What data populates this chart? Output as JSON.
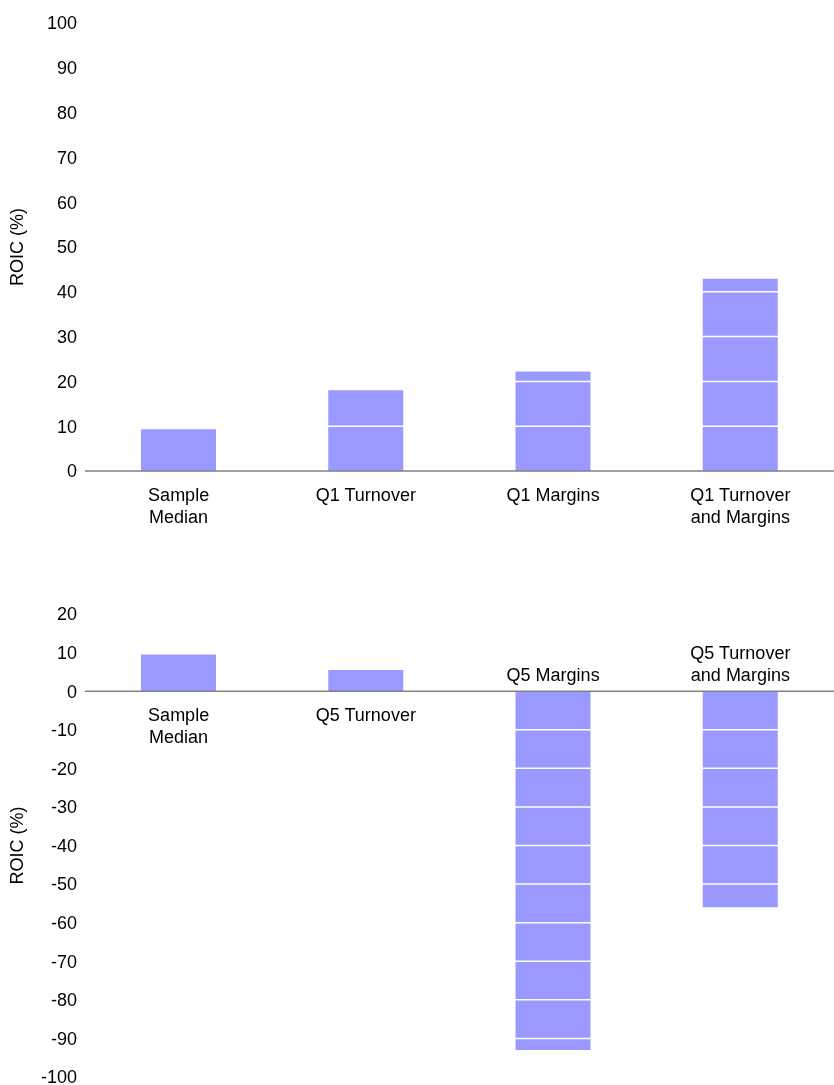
{
  "chart_data": [
    {
      "type": "bar",
      "ylabel": "ROIC (%)",
      "categories": [
        "Sample Median",
        "Q1 Turnover",
        "Q1 Margins",
        "Q1 Turnover and Margins"
      ],
      "values": [
        9.3,
        18,
        22.2,
        42.9
      ],
      "color": "#9999ff",
      "ylim": [
        0,
        100
      ],
      "yticks": [
        0,
        10,
        20,
        30,
        40,
        50,
        60,
        70,
        80,
        90,
        100
      ],
      "grid": "y"
    },
    {
      "type": "bar",
      "ylabel": "ROIC (%)",
      "categories": [
        "Sample Median",
        "Q5 Turnover",
        "Q5 Margins",
        "Q5 Turnover and Margins"
      ],
      "values": [
        9.5,
        5.5,
        -93,
        -56
      ],
      "color": "#9999ff",
      "ylim": [
        -100,
        20
      ],
      "yticks": [
        -100,
        -90,
        -80,
        -70,
        -60,
        -50,
        -40,
        -30,
        -20,
        -10,
        0,
        10,
        20
      ],
      "grid": "y"
    }
  ]
}
